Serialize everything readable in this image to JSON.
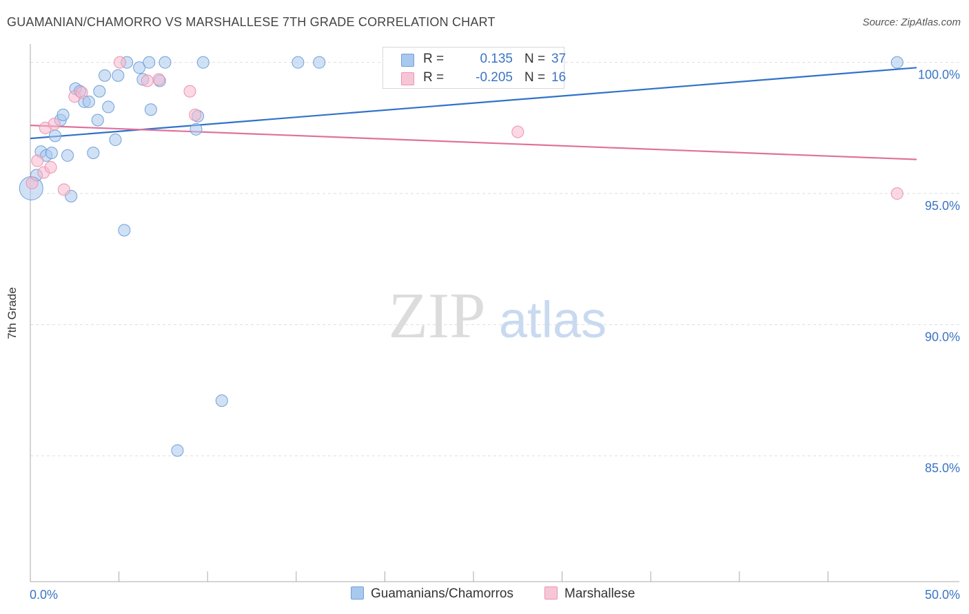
{
  "title": "GUAMANIAN/CHAMORRO VS MARSHALLESE 7TH GRADE CORRELATION CHART",
  "source": "Source: ZipAtlas.com",
  "watermark": {
    "zip": "ZIP",
    "atlas": "atlas"
  },
  "colors": {
    "blue_fill": "#a9c8ef",
    "blue_stroke": "#6f9fd8",
    "blue_line": "#2f72c9",
    "pink_fill": "#f7b8cc",
    "pink_stroke": "#e993b0",
    "pink_line": "#e0719a",
    "axis_text": "#3a74c4",
    "grid": "#dddddd"
  },
  "legend": {
    "series1": {
      "r_label": "R =",
      "r_value": "0.135",
      "n_label": "N =",
      "n_value": "37"
    },
    "series2": {
      "r_label": "R =",
      "r_value": "-0.205",
      "n_label": "N =",
      "n_value": "16"
    }
  },
  "bottom_legend": {
    "series1": "Guamanians/Chamorros",
    "series2": "Marshallese"
  },
  "chart_data": {
    "type": "scatter",
    "title": "GUAMANIAN/CHAMORRO VS MARSHALLESE 7TH GRADE CORRELATION CHART",
    "xlabel": "",
    "ylabel": "7th Grade",
    "xlim": [
      0,
      50
    ],
    "ylim": [
      80.2,
      100.7
    ],
    "x_tick_labels": [
      {
        "value": 0,
        "label": "0.0%"
      },
      {
        "value": 50,
        "label": "50.0%"
      }
    ],
    "x_minor_ticks": [
      5,
      10,
      15,
      20,
      25,
      30,
      35,
      40,
      45
    ],
    "y_ticks": [
      {
        "value": 100,
        "label": "100.0%"
      },
      {
        "value": 95,
        "label": "95.0%"
      },
      {
        "value": 90,
        "label": "90.0%"
      },
      {
        "value": 85,
        "label": "85.0%"
      }
    ],
    "grid": true,
    "series": [
      {
        "name": "Guamanians/Chamorros",
        "r": 0.135,
        "n": 37,
        "trend": {
          "x": [
            0,
            50
          ],
          "y": [
            97.1,
            99.8
          ]
        },
        "points": [
          {
            "x": 0.05,
            "y": 95.2,
            "size": 3
          },
          {
            "x": 0.35,
            "y": 95.7,
            "size": 1
          },
          {
            "x": 0.6,
            "y": 96.6,
            "size": 1
          },
          {
            "x": 0.9,
            "y": 96.45,
            "size": 1
          },
          {
            "x": 1.2,
            "y": 96.55,
            "size": 1
          },
          {
            "x": 1.4,
            "y": 97.2,
            "size": 1
          },
          {
            "x": 1.7,
            "y": 97.8,
            "size": 1
          },
          {
            "x": 1.85,
            "y": 98.0,
            "size": 1
          },
          {
            "x": 2.1,
            "y": 96.45,
            "size": 1
          },
          {
            "x": 2.3,
            "y": 94.9,
            "size": 1
          },
          {
            "x": 2.55,
            "y": 99.0,
            "size": 1
          },
          {
            "x": 2.8,
            "y": 98.9,
            "size": 1
          },
          {
            "x": 3.05,
            "y": 98.5,
            "size": 1
          },
          {
            "x": 3.3,
            "y": 98.5,
            "size": 1
          },
          {
            "x": 3.55,
            "y": 96.55,
            "size": 1
          },
          {
            "x": 3.8,
            "y": 97.8,
            "size": 1
          },
          {
            "x": 3.9,
            "y": 98.9,
            "size": 1
          },
          {
            "x": 4.2,
            "y": 99.5,
            "size": 1
          },
          {
            "x": 4.4,
            "y": 98.3,
            "size": 1
          },
          {
            "x": 4.8,
            "y": 97.05,
            "size": 1
          },
          {
            "x": 4.95,
            "y": 99.5,
            "size": 1
          },
          {
            "x": 5.3,
            "y": 93.6,
            "size": 1
          },
          {
            "x": 5.45,
            "y": 100.0,
            "size": 1
          },
          {
            "x": 6.15,
            "y": 99.8,
            "size": 1
          },
          {
            "x": 6.35,
            "y": 99.35,
            "size": 1
          },
          {
            "x": 6.7,
            "y": 100.0,
            "size": 1
          },
          {
            "x": 6.8,
            "y": 98.2,
            "size": 1
          },
          {
            "x": 7.3,
            "y": 99.3,
            "size": 1
          },
          {
            "x": 7.6,
            "y": 100.0,
            "size": 1
          },
          {
            "x": 8.3,
            "y": 85.2,
            "size": 1
          },
          {
            "x": 9.35,
            "y": 97.45,
            "size": 1
          },
          {
            "x": 9.45,
            "y": 97.95,
            "size": 1
          },
          {
            "x": 9.75,
            "y": 100.0,
            "size": 1
          },
          {
            "x": 10.8,
            "y": 87.1,
            "size": 1
          },
          {
            "x": 15.1,
            "y": 100.0,
            "size": 1
          },
          {
            "x": 16.3,
            "y": 100.0,
            "size": 1
          },
          {
            "x": 48.9,
            "y": 100.0,
            "size": 1
          }
        ]
      },
      {
        "name": "Marshallese",
        "r": -0.205,
        "n": 16,
        "trend": {
          "x": [
            0,
            50
          ],
          "y": [
            97.6,
            96.3
          ]
        },
        "points": [
          {
            "x": 0.1,
            "y": 95.4,
            "size": 1
          },
          {
            "x": 0.4,
            "y": 96.25,
            "size": 1
          },
          {
            "x": 0.75,
            "y": 95.8,
            "size": 1
          },
          {
            "x": 0.85,
            "y": 97.5,
            "size": 1
          },
          {
            "x": 1.15,
            "y": 96.0,
            "size": 1
          },
          {
            "x": 1.35,
            "y": 97.65,
            "size": 1
          },
          {
            "x": 1.9,
            "y": 95.15,
            "size": 1
          },
          {
            "x": 2.5,
            "y": 98.7,
            "size": 1
          },
          {
            "x": 2.9,
            "y": 98.85,
            "size": 1
          },
          {
            "x": 5.05,
            "y": 100.0,
            "size": 1
          },
          {
            "x": 6.6,
            "y": 99.3,
            "size": 1
          },
          {
            "x": 7.25,
            "y": 99.35,
            "size": 1
          },
          {
            "x": 9.0,
            "y": 98.9,
            "size": 1
          },
          {
            "x": 9.3,
            "y": 98.0,
            "size": 1
          },
          {
            "x": 27.5,
            "y": 97.35,
            "size": 1
          },
          {
            "x": 48.9,
            "y": 95.0,
            "size": 1
          }
        ]
      }
    ]
  }
}
